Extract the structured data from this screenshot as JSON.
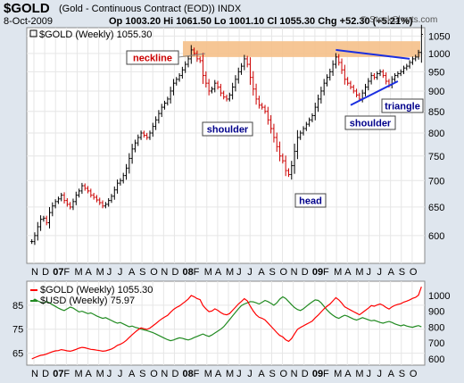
{
  "header": {
    "symbol": "$GOLD",
    "description": "(Gold - Continuous Contract (EOD))  INDX",
    "date": "8-Oct-2009",
    "quote": "Op 1003.20  Hi 1061.50  Lo 1001.10  Cl 1055.30  Chg +52.30 (+5.21%)",
    "quote_parts": {
      "op": "1003.20",
      "hi": "1061.50",
      "lo": "1001.10",
      "cl": "1055.30",
      "chg": "+52.30 (+5.21%)"
    },
    "credit": "© StockCharts.com"
  },
  "colors": {
    "up": "#000000",
    "down": "#cc0000",
    "resistance": "#f5c08a",
    "trend": "#1a2ee0",
    "gold_line": "#ff0000",
    "usd_line": "#228b22"
  },
  "chart_data": [
    {
      "type": "bar",
      "title": "$GOLD (Weekly) 1055.30",
      "period": "weekly OHLC",
      "x_start": "2006-10-27",
      "y_scale": "log",
      "ylim": [
        555,
        1075
      ],
      "y_ticks": [
        600,
        650,
        700,
        750,
        800,
        850,
        900,
        950,
        1000,
        1050
      ],
      "x_tick_labels": [
        "N",
        "D",
        "07",
        "F",
        "M",
        "A",
        "M",
        "J",
        "J",
        "A",
        "S",
        "O",
        "N",
        "D",
        "08",
        "F",
        "M",
        "A",
        "M",
        "J",
        "J",
        "A",
        "S",
        "O",
        "N",
        "D",
        "09",
        "F",
        "M",
        "A",
        "M",
        "J",
        "J",
        "A",
        "S",
        "O"
      ],
      "x_bold_labels": [
        "07",
        "08",
        "09"
      ],
      "grid": true,
      "resistance_band": [
        990,
        1035
      ],
      "closes": [
        590,
        600,
        615,
        628,
        630,
        622,
        640,
        652,
        660,
        665,
        672,
        662,
        655,
        650,
        660,
        672,
        680,
        690,
        685,
        680,
        672,
        668,
        663,
        658,
        652,
        655,
        662,
        670,
        682,
        695,
        700,
        710,
        725,
        745,
        765,
        778,
        790,
        800,
        795,
        790,
        800,
        815,
        830,
        845,
        860,
        870,
        880,
        900,
        920,
        930,
        940,
        955,
        970,
        985,
        1010,
        1000,
        985,
        980,
        940,
        920,
        900,
        905,
        920,
        910,
        895,
        885,
        880,
        890,
        910,
        930,
        950,
        965,
        985,
        970,
        935,
        905,
        880,
        865,
        860,
        850,
        830,
        810,
        790,
        770,
        750,
        740,
        720,
        712,
        730,
        760,
        790,
        800,
        810,
        820,
        830,
        840,
        860,
        880,
        900,
        920,
        935,
        950,
        970,
        990,
        975,
        955,
        930,
        920,
        910,
        900,
        890,
        880,
        895,
        910,
        925,
        940,
        935,
        945,
        950,
        940,
        925,
        915,
        930,
        940,
        945,
        950,
        960,
        965,
        975,
        985,
        990,
        1003,
        1055
      ],
      "annotations": [
        {
          "text": "neckline",
          "style": "red-box"
        },
        {
          "text": "shoulder",
          "style": "blue-box"
        },
        {
          "text": "head",
          "style": "blue-box"
        },
        {
          "text": "shoulder",
          "style": "blue-box"
        },
        {
          "text": "triangle",
          "style": "blue-box"
        }
      ]
    },
    {
      "type": "line",
      "title": "",
      "x_start": "2006-10-27",
      "ylim_left": [
        60,
        95
      ],
      "ylim_right": [
        560,
        1090
      ],
      "left_ticks": [
        65,
        75,
        85
      ],
      "right_ticks": [
        600,
        700,
        800,
        900,
        1000
      ],
      "grid": true,
      "legend_placement": "top-left",
      "series": [
        {
          "name": "$GOLD (Weekly) 1055.30",
          "axis": "right",
          "color": "#ff0000",
          "values": [
            600,
            608,
            615,
            622,
            625,
            630,
            638,
            645,
            650,
            652,
            658,
            655,
            650,
            648,
            653,
            660,
            667,
            672,
            670,
            665,
            660,
            658,
            655,
            652,
            648,
            650,
            656,
            662,
            672,
            685,
            692,
            702,
            716,
            734,
            752,
            768,
            784,
            795,
            790,
            786,
            794,
            808,
            822,
            838,
            852,
            864,
            874,
            894,
            912,
            924,
            934,
            948,
            962,
            978,
            1000,
            992,
            980,
            974,
            936,
            916,
            898,
            902,
            916,
            906,
            892,
            882,
            878,
            886,
            906,
            926,
            946,
            962,
            980,
            966,
            932,
            902,
            878,
            862,
            856,
            846,
            826,
            806,
            786,
            766,
            748,
            738,
            720,
            710,
            728,
            758,
            786,
            798,
            808,
            818,
            828,
            838,
            858,
            876,
            896,
            916,
            932,
            946,
            966,
            986,
            972,
            952,
            928,
            918,
            908,
            898,
            888,
            878,
            892,
            906,
            920,
            936,
            932,
            940,
            946,
            938,
            924,
            914,
            928,
            938,
            944,
            948,
            958,
            964,
            972,
            982,
            988,
            1002,
            1055
          ]
        },
        {
          "name": "$USD (Weekly) 75.97",
          "axis": "left",
          "color": "#228b22",
          "values": [
            86.5,
            87.5,
            86.8,
            86.2,
            85.8,
            86.5,
            86,
            85.2,
            84.5,
            83.8,
            83.2,
            82.8,
            83.5,
            84.2,
            83.8,
            83,
            82.2,
            82.5,
            82,
            81.5,
            81.8,
            81.2,
            80.5,
            80,
            79.5,
            79.8,
            79.2,
            78.6,
            78,
            77.5,
            77.8,
            77.2,
            76.6,
            76,
            76.3,
            75.8,
            75.5,
            75,
            74.7,
            74.4,
            74,
            73.6,
            73,
            72.4,
            71.8,
            71.2,
            70.6,
            70.2,
            70.5,
            71,
            71.4,
            71.2,
            70.8,
            70.5,
            70.9,
            71.5,
            72,
            72.5,
            73,
            72.4,
            72,
            72.6,
            73.4,
            74.2,
            75,
            76,
            77.5,
            79,
            80.5,
            82,
            83.5,
            84.8,
            85.5,
            86,
            86.5,
            86.4,
            86,
            85.5,
            86.2,
            87,
            86.5,
            85.8,
            85,
            86,
            87.5,
            88.5,
            87.8,
            86.5,
            85.2,
            84,
            83.2,
            82.8,
            83.5,
            84.5,
            85.5,
            86.4,
            87.2,
            87,
            86,
            84.5,
            83,
            81.8,
            80.8,
            80,
            79.5,
            80.2,
            80.8,
            80.4,
            79.8,
            79.2,
            78.8,
            79.3,
            79.8,
            79.4,
            78.9,
            78.5,
            78.7,
            78.3,
            77.8,
            77.5,
            77.9,
            78.2,
            77.8,
            77.2,
            76.8,
            76.4,
            76.8,
            76.3,
            76,
            75.8,
            76.2,
            76.5,
            75.97
          ]
        }
      ]
    }
  ]
}
